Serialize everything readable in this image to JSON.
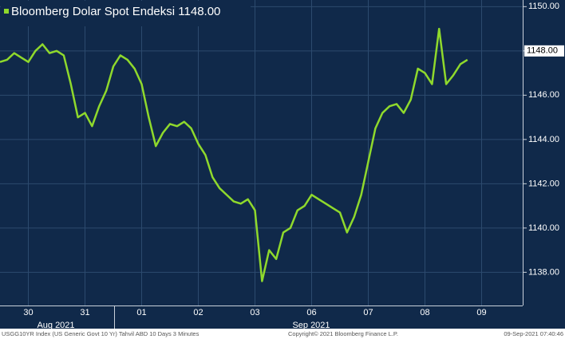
{
  "chart_data": {
    "type": "line",
    "title": "Bloomberg Dolar Spot Endeksi 1148.00",
    "current_value": {
      "value": 1148,
      "label": "1148.00"
    },
    "categories": [
      null,
      null,
      null,
      null,
      "30",
      null,
      null,
      null,
      null,
      null,
      null,
      null,
      "31",
      null,
      null,
      null,
      null,
      null,
      null,
      null,
      "01",
      null,
      null,
      null,
      null,
      null,
      null,
      null,
      "02",
      null,
      null,
      null,
      null,
      null,
      null,
      null,
      "03",
      null,
      null,
      null,
      null,
      null,
      null,
      null,
      "06",
      null,
      null,
      null,
      null,
      null,
      null,
      null,
      "07",
      null,
      null,
      null,
      null,
      null,
      null,
      null,
      "08",
      null,
      null,
      null,
      null,
      null,
      null,
      null,
      "09"
    ],
    "series": [
      {
        "name": "Bloomberg Dolar Spot Endeksi",
        "color": "#8fd92c",
        "values": [
          1147.5,
          1147.6,
          1147.9,
          1147.7,
          1147.5,
          1148.0,
          1148.3,
          1147.9,
          1148.0,
          1147.8,
          1146.5,
          1145.0,
          1145.2,
          1144.6,
          1145.5,
          1146.2,
          1147.3,
          1147.8,
          1147.6,
          1147.2,
          1146.5,
          1145.0,
          1143.7,
          1144.3,
          1144.7,
          1144.6,
          1144.8,
          1144.5,
          1143.8,
          1143.3,
          1142.3,
          1141.8,
          1141.5,
          1141.2,
          1141.1,
          1141.3,
          1140.8,
          1137.6,
          1139.0,
          1138.6,
          1139.8,
          1140.0,
          1140.8,
          1141.0,
          1141.5,
          1141.3,
          1141.1,
          1140.9,
          1140.7,
          1139.8,
          1140.5,
          1141.5,
          1143.0,
          1144.5,
          1145.2,
          1145.5,
          1145.6,
          1145.2,
          1145.8,
          1147.2,
          1147.0,
          1146.5,
          1149.0,
          1146.5,
          1146.9,
          1147.4,
          1147.6,
          null,
          null
        ]
      }
    ],
    "ylim": [
      1136.5,
      1150.3
    ],
    "yticks": [
      {
        "value": 1138,
        "label": "1138.00"
      },
      {
        "value": 1140,
        "label": "1140.00"
      },
      {
        "value": 1142,
        "label": "1142.00"
      },
      {
        "value": 1144,
        "label": "1144.00"
      },
      {
        "value": 1146,
        "label": "1146.00"
      },
      {
        "value": 1148,
        "label": "1148.00"
      },
      {
        "value": 1150,
        "label": "1150.00"
      }
    ],
    "grid": true,
    "months": [
      "Aug 2021",
      "Sep 2021"
    ],
    "footer": {
      "left": "USGG10YR Index (US Generic Govt 10 Yr) Tahvil ABD 10 Days 3 Minutes",
      "center": "Copyright© 2021 Bloomberg Finance L.P.",
      "right": "09-Sep-2021 07:40:46"
    }
  }
}
